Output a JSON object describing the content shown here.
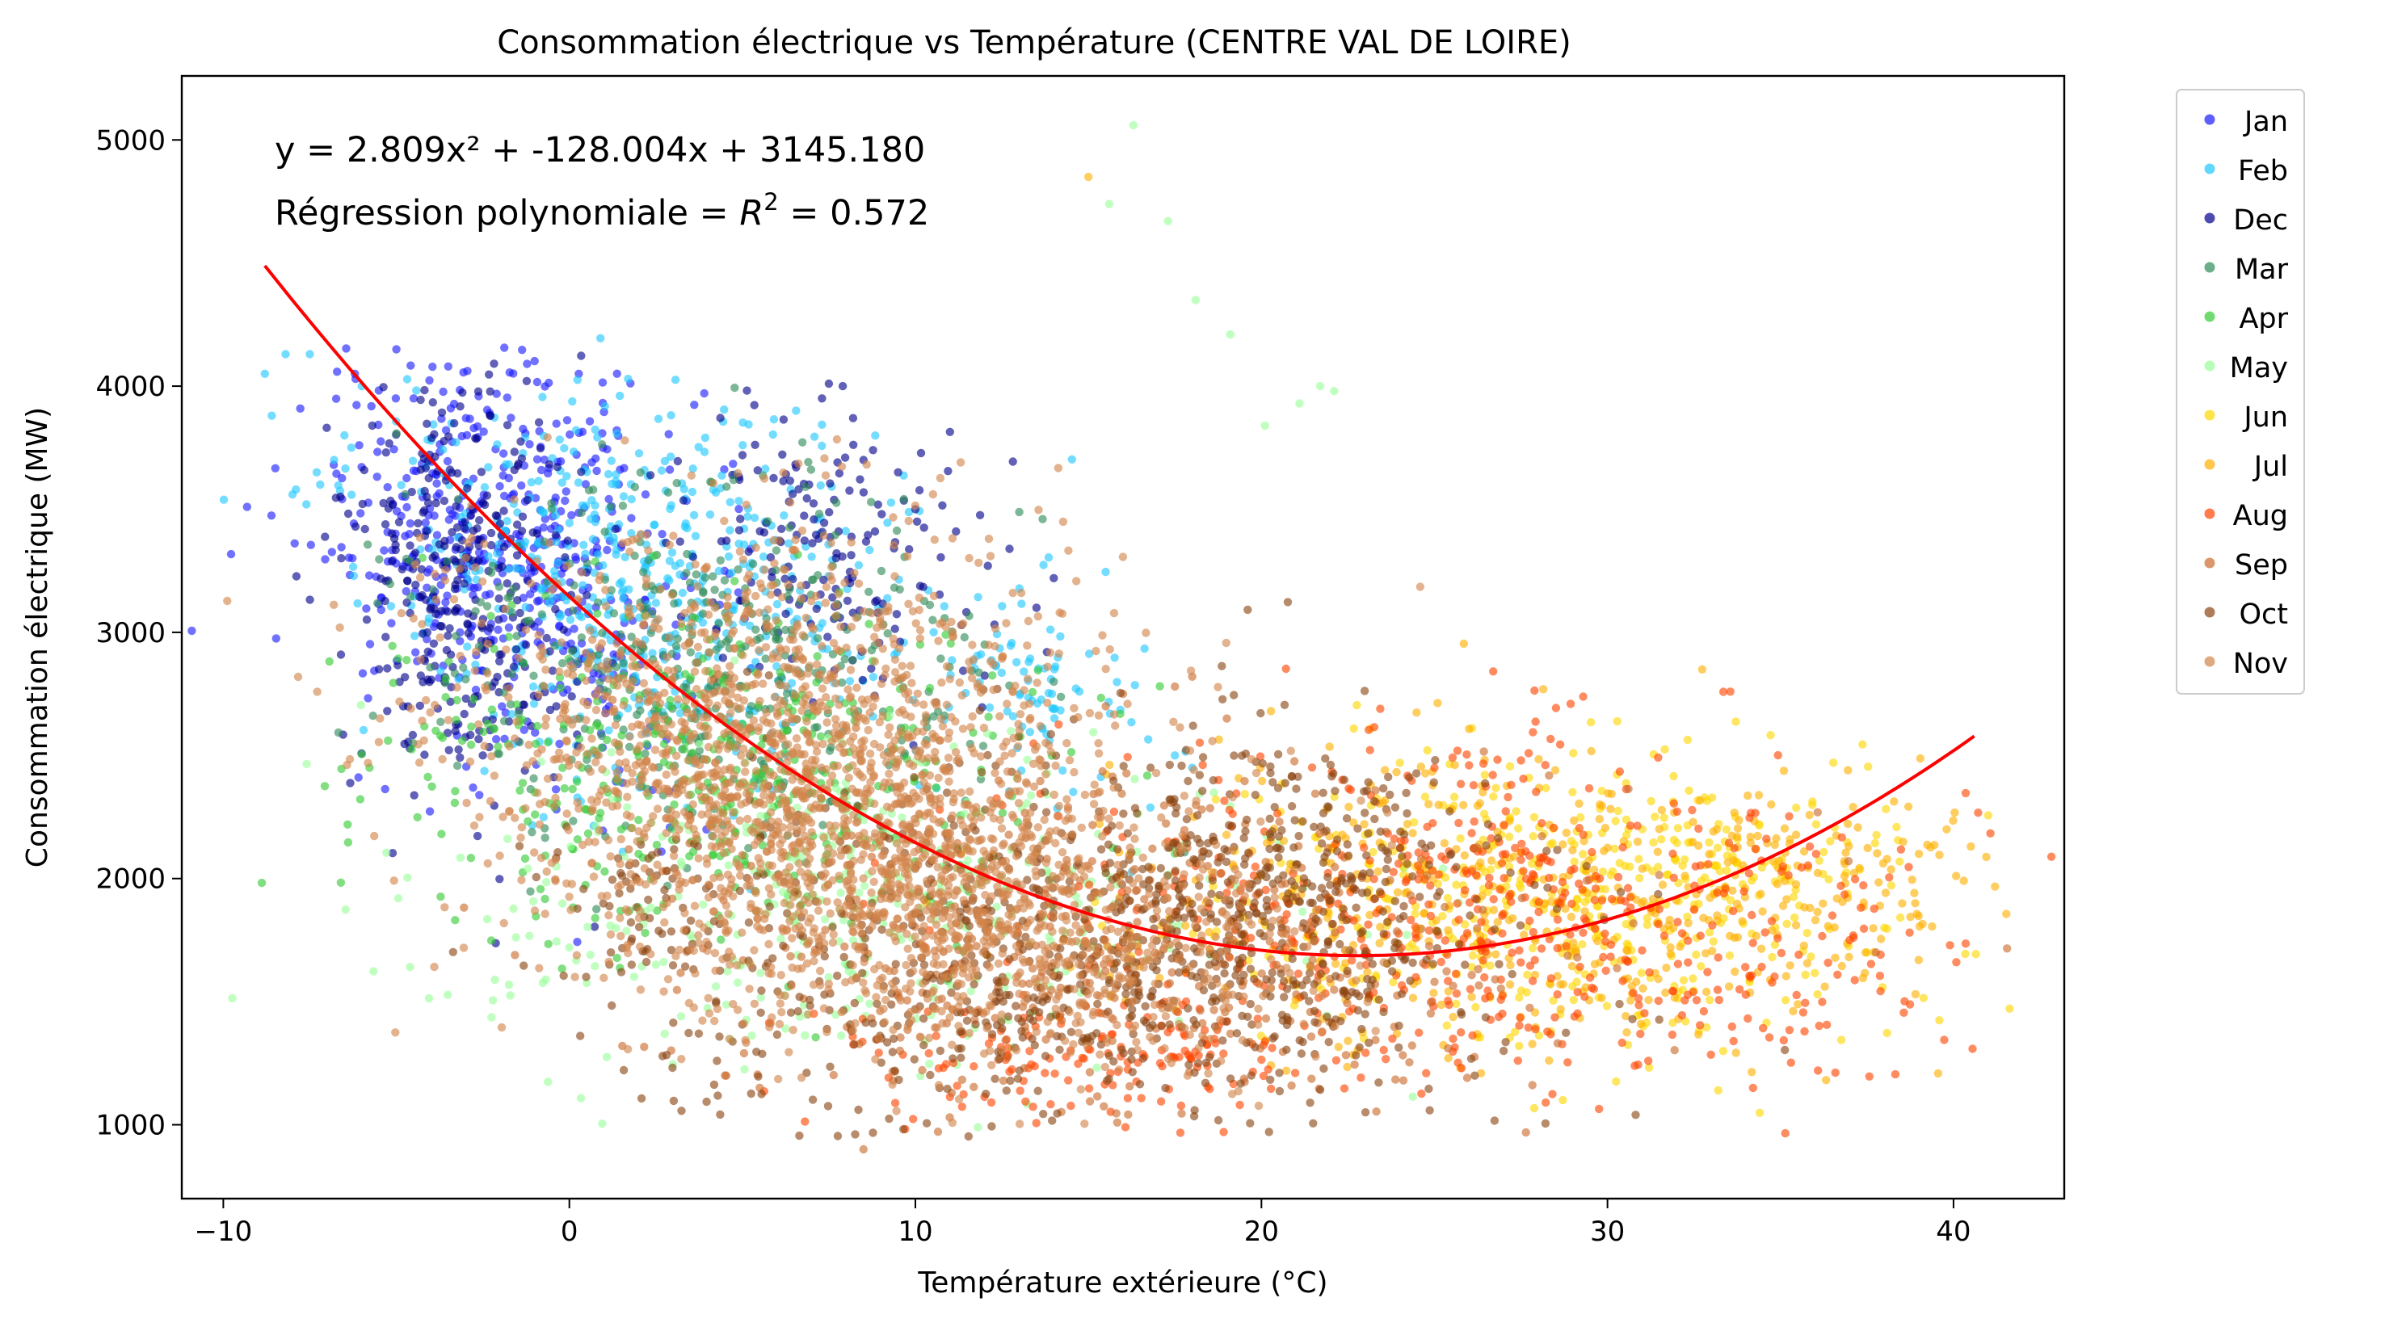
{
  "chart_data": {
    "type": "scatter",
    "title": "Consommation électrique vs Température (CENTRE VAL DE LOIRE)",
    "xlabel": "Température extérieure (°C)",
    "ylabel": "Consommation électrique (MW)",
    "xlim": [
      -11.2,
      43.2
    ],
    "ylim": [
      700,
      5260
    ],
    "xticks": [
      -10,
      0,
      10,
      20,
      30,
      40
    ],
    "yticks": [
      1000,
      2000,
      3000,
      4000,
      5000
    ],
    "xtick_labels": [
      "−10",
      "0",
      "10",
      "20",
      "30",
      "40"
    ],
    "ytick_labels": [
      "1000",
      "2000",
      "3000",
      "4000",
      "5000"
    ],
    "grid": false,
    "legend_position": "outside-top-right",
    "annotation": {
      "equation": "y = 2.809x² + -128.004x + 3145.180",
      "r2_prefix": "Régression polynomiale = ",
      "r2_symbol": "R",
      "r2_exponent": "2",
      "r2_suffix": " = 0.572"
    },
    "fit": {
      "name": "",
      "color": "#ff0000",
      "coefficients": [
        2.809,
        -128.004,
        3145.18
      ],
      "x_range": [
        -8.8,
        40.6
      ]
    },
    "series": [
      {
        "name": "Jan",
        "color": "#1a1aff",
        "clusters": [
          {
            "cx": -1.5,
            "cy": 3300,
            "sx": 2.8,
            "sy": 420,
            "n": 520,
            "tilt": -70
          }
        ],
        "points": [
          [
            -5.0,
            4150
          ],
          [
            -6.2,
            4050
          ],
          [
            -3.5,
            4080
          ],
          [
            -4.5,
            3950
          ]
        ]
      },
      {
        "name": "Feb",
        "color": "#1ec8ff",
        "clusters": [
          {
            "cx": 2.0,
            "cy": 3200,
            "sx": 4.0,
            "sy": 380,
            "n": 520,
            "tilt": -70
          },
          {
            "cx": 13.5,
            "cy": 2800,
            "sx": 1.5,
            "sy": 200,
            "n": 80,
            "tilt": -70
          }
        ],
        "points": [
          [
            -8.8,
            4050
          ],
          [
            -8.2,
            4130
          ],
          [
            -7.5,
            4130
          ],
          [
            -8.6,
            3880
          ],
          [
            -8.0,
            3560
          ],
          [
            -7.6,
            3520
          ],
          [
            -7.2,
            3600
          ],
          [
            -6.8,
            3700
          ],
          [
            -7.9,
            3580
          ],
          [
            -6.5,
            3800
          ],
          [
            -6.0,
            4000
          ],
          [
            -7.3,
            3650
          ],
          [
            -6.3,
            3750
          ],
          [
            17.5,
            2500
          ],
          [
            18.0,
            2450
          ]
        ]
      },
      {
        "name": "Dec",
        "color": "#00008b",
        "clusters": [
          {
            "cx": -3.0,
            "cy": 3200,
            "sx": 1.6,
            "sy": 420,
            "n": 320,
            "tilt": -60
          },
          {
            "cx": 7.5,
            "cy": 3300,
            "sx": 2.2,
            "sy": 280,
            "n": 160,
            "tilt": -60
          }
        ],
        "points": [
          [
            7.5,
            4010
          ],
          [
            7.9,
            4000
          ],
          [
            7.3,
            3950
          ],
          [
            8.2,
            3870
          ],
          [
            8.5,
            3700
          ],
          [
            9.5,
            3650
          ],
          [
            10.0,
            3500
          ],
          [
            14.0,
            3220
          ],
          [
            13.5,
            3100
          ],
          [
            13.8,
            2920
          ],
          [
            -5.5,
            2850
          ],
          [
            -4.8,
            2700
          ],
          [
            -2.5,
            2500
          ]
        ]
      },
      {
        "name": "Mar",
        "color": "#2e8b57",
        "clusters": [
          {
            "cx": 4.0,
            "cy": 2900,
            "sx": 4.0,
            "sy": 380,
            "n": 420,
            "tilt": -60
          }
        ],
        "points": [
          [
            10.5,
            3050
          ],
          [
            12.0,
            2950
          ],
          [
            14.0,
            2800
          ]
        ]
      },
      {
        "name": "Apr",
        "color": "#33cc33",
        "clusters": [
          {
            "cx": 4.5,
            "cy": 2400,
            "sx": 4.5,
            "sy": 350,
            "n": 400,
            "tilt": -50
          }
        ],
        "points": [
          [
            -1.0,
            2350
          ],
          [
            0.5,
            2280
          ],
          [
            1.5,
            2200
          ],
          [
            2.0,
            2100
          ],
          [
            0.8,
            2050
          ]
        ]
      },
      {
        "name": "May",
        "color": "#99ff99",
        "clusters": [
          {
            "cx": 9.0,
            "cy": 1900,
            "sx": 6.0,
            "sy": 330,
            "n": 360,
            "tilt": -30
          }
        ],
        "points": [
          [
            16.3,
            5060
          ],
          [
            15.6,
            4740
          ],
          [
            17.3,
            4670
          ],
          [
            18.1,
            4350
          ],
          [
            19.1,
            4210
          ],
          [
            21.7,
            4000
          ],
          [
            22.1,
            3980
          ],
          [
            21.1,
            3930
          ],
          [
            20.1,
            3840
          ],
          [
            0.0,
            1720
          ],
          [
            2.5,
            1650
          ]
        ]
      },
      {
        "name": "Jun",
        "color": "#ffd700",
        "clusters": [
          {
            "cx": 28.0,
            "cy": 1900,
            "sx": 5.0,
            "sy": 300,
            "n": 380,
            "tilt": 0
          },
          {
            "cx": 33.0,
            "cy": 2050,
            "sx": 3.0,
            "sy": 200,
            "n": 120,
            "tilt": 0
          }
        ],
        "points": [
          [
            33.2,
            1140
          ],
          [
            38.0,
            1800
          ],
          [
            37.5,
            1700
          ]
        ]
      },
      {
        "name": "Jul",
        "color": "#ffb000",
        "clusters": [
          {
            "cx": 27.0,
            "cy": 1900,
            "sx": 6.0,
            "sy": 320,
            "n": 420,
            "tilt": 0
          },
          {
            "cx": 36.0,
            "cy": 2000,
            "sx": 2.0,
            "sy": 180,
            "n": 90,
            "tilt": 0
          }
        ],
        "points": [
          [
            15.0,
            4850
          ],
          [
            40.5,
            2130
          ],
          [
            39.8,
            2200
          ],
          [
            39.0,
            2100
          ]
        ]
      },
      {
        "name": "Aug",
        "color": "#ff4500",
        "clusters": [
          {
            "cx": 26.0,
            "cy": 1850,
            "sx": 6.5,
            "sy": 340,
            "n": 600,
            "tilt": 0
          },
          {
            "cx": 15.0,
            "cy": 1250,
            "sx": 3.5,
            "sy": 130,
            "n": 140,
            "tilt": 0
          }
        ],
        "points": [
          [
            27.5,
            2480
          ],
          [
            26.0,
            2460
          ],
          [
            25.0,
            2450
          ],
          [
            36.5,
            1850
          ],
          [
            37.0,
            1750
          ]
        ]
      },
      {
        "name": "Sep",
        "color": "#cc6a2c",
        "clusters": [
          {
            "cx": 16.0,
            "cy": 1700,
            "sx": 7.0,
            "sy": 380,
            "n": 420,
            "tilt": 0
          }
        ],
        "points": [
          [
            18.0,
            2820
          ],
          [
            17.5,
            2780
          ],
          [
            16.0,
            2750
          ],
          [
            15.5,
            2700
          ],
          [
            19.0,
            2650
          ],
          [
            8.5,
            900
          ],
          [
            5.5,
            1150
          ],
          [
            4.5,
            1200
          ]
        ]
      },
      {
        "name": "Oct",
        "color": "#8b4513",
        "clusters": [
          {
            "cx": 14.0,
            "cy": 1700,
            "sx": 6.0,
            "sy": 400,
            "n": 820,
            "tilt": 0
          },
          {
            "cx": 21.0,
            "cy": 1900,
            "sx": 2.5,
            "sy": 300,
            "n": 320,
            "tilt": 0
          },
          {
            "cx": 2.0,
            "cy": 1900,
            "sx": 1.5,
            "sy": 200,
            "n": 60,
            "tilt": -40
          }
        ],
        "points": [
          [
            1.5,
            1620
          ],
          [
            1.2,
            1700
          ],
          [
            1.8,
            1650
          ],
          [
            27.0,
            1300
          ]
        ]
      },
      {
        "name": "Nov",
        "color": "#d2854a",
        "clusters": [
          {
            "cx": 6.0,
            "cy": 2500,
            "sx": 4.5,
            "sy": 450,
            "n": 1500,
            "tilt": -60
          },
          {
            "cx": 10.0,
            "cy": 2000,
            "sx": 4.0,
            "sy": 350,
            "n": 700,
            "tilt": -40
          },
          {
            "cx": 15.0,
            "cy": 1650,
            "sx": 3.5,
            "sy": 250,
            "n": 300,
            "tilt": -20
          }
        ],
        "points": []
      }
    ]
  }
}
